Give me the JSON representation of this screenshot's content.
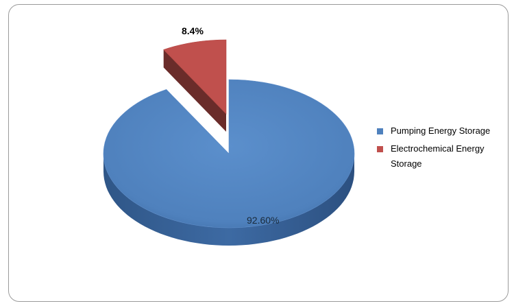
{
  "chart_data": {
    "type": "pie",
    "style": "3d-exploded",
    "slices": [
      {
        "label": "Pumping Energy Storage",
        "value": 92.6,
        "display": "92.60%",
        "color": "#4f81bd"
      },
      {
        "label": "Electrochemical Energy Storage",
        "value": 8.4,
        "display": "8.4%",
        "color": "#c0504d"
      }
    ],
    "legend_position": "right",
    "title": ""
  }
}
